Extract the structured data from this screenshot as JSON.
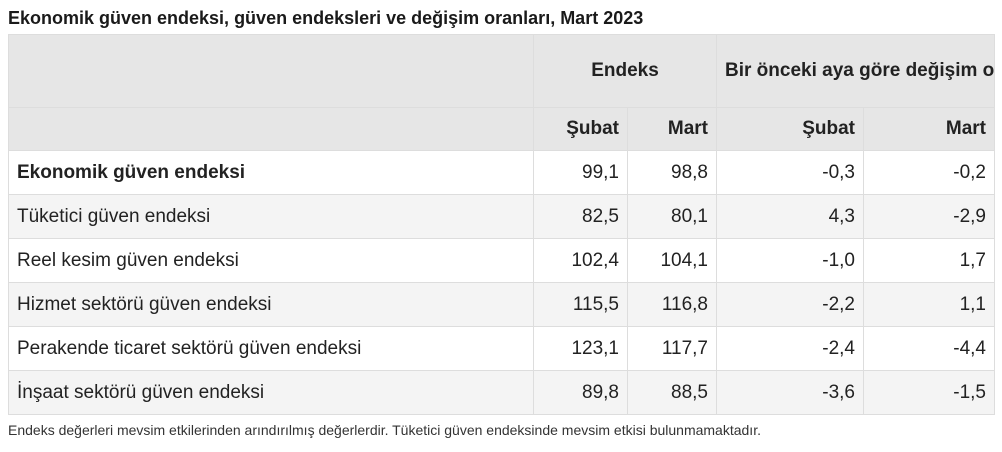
{
  "title": "Ekonomik güven endeksi, güven endeksleri ve değişim oranları, Mart 2023",
  "header": {
    "group_index": "Endeks",
    "group_change": "Bir önceki aya göre değişim oranı (%)",
    "index_feb": "Şubat",
    "index_mar": "Mart",
    "change_feb": "Şubat",
    "change_mar": "Mart"
  },
  "rows": [
    {
      "label": "Ekonomik güven endeksi",
      "idx_feb": "99,1",
      "idx_mar": "98,8",
      "chg_feb": "-0,3",
      "chg_mar": "-0,2"
    },
    {
      "label": "Tüketici güven endeksi",
      "idx_feb": "82,5",
      "idx_mar": "80,1",
      "chg_feb": "4,3",
      "chg_mar": "-2,9"
    },
    {
      "label": "Reel kesim güven endeksi",
      "idx_feb": "102,4",
      "idx_mar": "104,1",
      "chg_feb": "-1,0",
      "chg_mar": "1,7"
    },
    {
      "label": "Hizmet sektörü güven endeksi",
      "idx_feb": "115,5",
      "idx_mar": "116,8",
      "chg_feb": "-2,2",
      "chg_mar": "1,1"
    },
    {
      "label": "Perakende ticaret sektörü güven endeksi",
      "idx_feb": "123,1",
      "idx_mar": "117,7",
      "chg_feb": "-2,4",
      "chg_mar": "-4,4"
    },
    {
      "label": "İnşaat sektörü güven endeksi",
      "idx_feb": "89,8",
      "idx_mar": "88,5",
      "chg_feb": "-3,6",
      "chg_mar": "-1,5"
    }
  ],
  "footnote": "Endeks değerleri mevsim etkilerinden arındırılmış değerlerdir. Tüketici güven endeksinde mevsim etkisi bulunmamaktadır."
}
